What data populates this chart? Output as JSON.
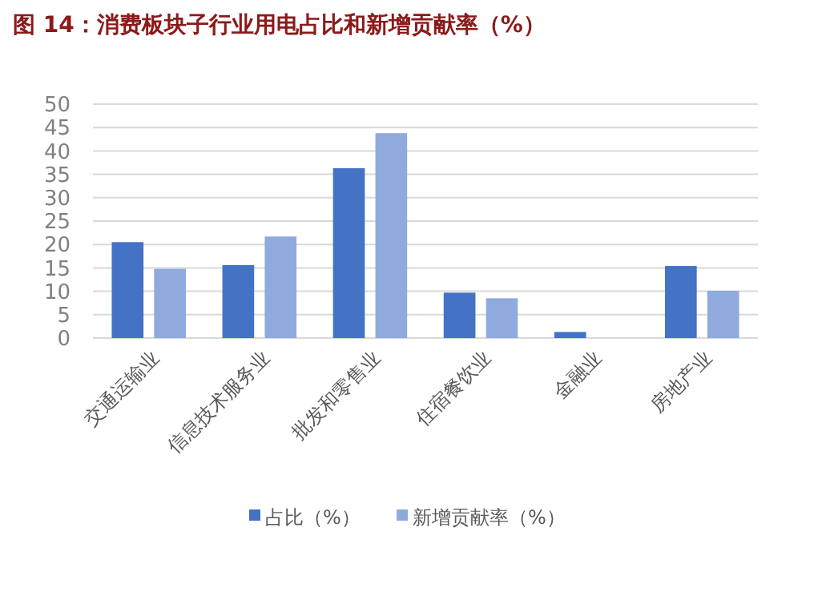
{
  "chart_data": {
    "type": "bar",
    "title": "图 14：消费板块子行业用电占比和新增贡献率（%）",
    "categories": [
      "交通运输业",
      "信息技术服务业",
      "批发和零售业",
      "住宿餐饮业",
      "金融业",
      "房地产业"
    ],
    "series": [
      {
        "name": "占比（%）",
        "color": "#4472c4",
        "values": [
          20.5,
          15.6,
          36.3,
          9.7,
          1.3,
          15.4
        ]
      },
      {
        "name": "新增贡献率（%）",
        "color": "#8faadc",
        "values": [
          14.8,
          21.7,
          43.8,
          8.5,
          0,
          10.1
        ]
      }
    ],
    "ylim": [
      0,
      50
    ],
    "yticks": [
      0,
      5,
      10,
      15,
      20,
      25,
      30,
      35,
      40,
      45,
      50
    ],
    "grid": "y",
    "legend": "bottom"
  }
}
